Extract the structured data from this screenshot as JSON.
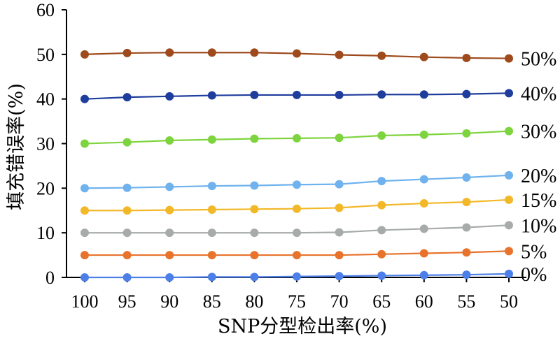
{
  "chart_data": {
    "type": "line",
    "xlabel": "SNP分型检出率(%)",
    "ylabel": "填充错误率(%)",
    "categories": [
      "100",
      "95",
      "90",
      "85",
      "80",
      "75",
      "70",
      "65",
      "60",
      "55",
      "50"
    ],
    "ylim": [
      0,
      60
    ],
    "yticks": [
      "0",
      "10",
      "20",
      "30",
      "40",
      "50",
      "60"
    ],
    "grid": false,
    "legend": "inline-right",
    "series": [
      {
        "name": "50%",
        "color": "#9e4a1c",
        "values": [
          50.0,
          50.3,
          50.4,
          50.4,
          50.4,
          50.2,
          49.9,
          49.7,
          49.4,
          49.2,
          49.1
        ]
      },
      {
        "name": "40%",
        "color": "#1f3d9c",
        "values": [
          40.0,
          40.4,
          40.6,
          40.8,
          40.9,
          40.9,
          40.9,
          41.0,
          41.0,
          41.1,
          41.3
        ]
      },
      {
        "name": "30%",
        "color": "#7ed43e",
        "values": [
          30.0,
          30.3,
          30.7,
          30.9,
          31.1,
          31.2,
          31.3,
          31.8,
          32.0,
          32.3,
          32.8
        ]
      },
      {
        "name": "20%",
        "color": "#6fb2ee",
        "values": [
          20.0,
          20.1,
          20.3,
          20.5,
          20.6,
          20.8,
          20.9,
          21.6,
          22.0,
          22.4,
          22.9
        ]
      },
      {
        "name": "15%",
        "color": "#f2b828",
        "values": [
          15.0,
          15.0,
          15.1,
          15.2,
          15.3,
          15.4,
          15.6,
          16.2,
          16.6,
          16.9,
          17.4
        ]
      },
      {
        "name": "10%",
        "color": "#a7abaa",
        "values": [
          10.0,
          10.0,
          10.0,
          10.0,
          10.0,
          10.0,
          10.1,
          10.6,
          10.9,
          11.2,
          11.7
        ]
      },
      {
        "name": "5%",
        "color": "#e8732c",
        "values": [
          5.0,
          5.0,
          5.0,
          5.0,
          5.0,
          5.0,
          5.0,
          5.2,
          5.4,
          5.6,
          5.9
        ]
      },
      {
        "name": "0%",
        "color": "#4d7fe8",
        "values": [
          0.0,
          0.0,
          0.0,
          0.1,
          0.1,
          0.2,
          0.3,
          0.4,
          0.5,
          0.6,
          0.8
        ]
      }
    ]
  }
}
